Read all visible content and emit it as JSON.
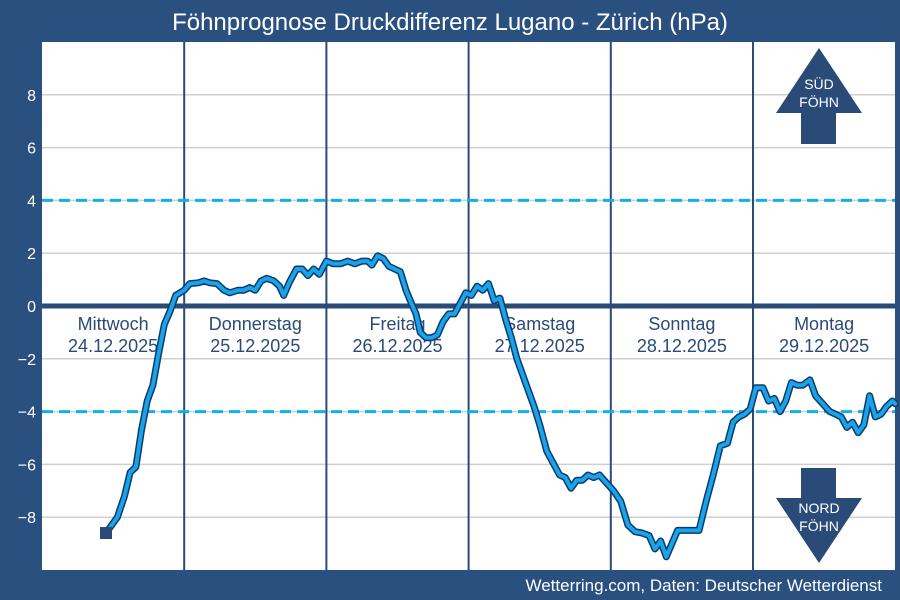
{
  "chart_data": {
    "type": "line",
    "title": "Föhnprognose Druckdifferenz Lugano - Zürich (hPa)",
    "credit": "Wetterring.com, Daten: Deutscher Wetterdienst",
    "ylim": [
      -10,
      10
    ],
    "xlim": [
      0,
      6
    ],
    "yticks": [
      {
        "value": 8,
        "label": "8"
      },
      {
        "value": 6,
        "label": "6"
      },
      {
        "value": 4,
        "label": "4"
      },
      {
        "value": 2,
        "label": "2"
      },
      {
        "value": 0,
        "label": "0"
      },
      {
        "value": -2,
        "label": "−2"
      },
      {
        "value": -4,
        "label": "−4"
      },
      {
        "value": -6,
        "label": "−6"
      },
      {
        "value": -8,
        "label": "−8"
      }
    ],
    "grid": true,
    "thresholds": [
      4,
      -4
    ],
    "days": [
      {
        "name": "Mittwoch",
        "date": "24.12.2025"
      },
      {
        "name": "Donnerstag",
        "date": "25.12.2025"
      },
      {
        "name": "Freitag",
        "date": "26.12.2025"
      },
      {
        "name": "Samstag",
        "date": "27.12.2025"
      },
      {
        "name": "Sonntag",
        "date": "28.12.2025"
      },
      {
        "name": "Montag",
        "date": "29.12.2025"
      }
    ],
    "markers": {
      "up": "SÜD FÖHN",
      "down": "NORD FÖHN"
    },
    "start_marker": {
      "x": 0.45,
      "y": -8.6
    },
    "series": [
      {
        "color": "#1aa3e8",
        "points": [
          [
            0.45,
            -8.6
          ],
          [
            0.53,
            -8.0
          ],
          [
            0.58,
            -7.2
          ],
          [
            0.62,
            -6.3
          ],
          [
            0.66,
            -6.1
          ],
          [
            0.7,
            -4.7
          ],
          [
            0.74,
            -3.6
          ],
          [
            0.78,
            -3.0
          ],
          [
            0.82,
            -1.8
          ],
          [
            0.86,
            -0.7
          ],
          [
            0.9,
            -0.2
          ],
          [
            0.94,
            0.4
          ],
          [
            1.0,
            0.6
          ],
          [
            1.04,
            0.85
          ],
          [
            1.1,
            0.88
          ],
          [
            1.14,
            0.95
          ],
          [
            1.18,
            0.88
          ],
          [
            1.23,
            0.85
          ],
          [
            1.28,
            0.6
          ],
          [
            1.32,
            0.5
          ],
          [
            1.38,
            0.6
          ],
          [
            1.42,
            0.6
          ],
          [
            1.46,
            0.7
          ],
          [
            1.5,
            0.6
          ],
          [
            1.54,
            0.95
          ],
          [
            1.58,
            1.05
          ],
          [
            1.63,
            0.95
          ],
          [
            1.67,
            0.75
          ],
          [
            1.7,
            0.4
          ],
          [
            1.74,
            0.9
          ],
          [
            1.79,
            1.4
          ],
          [
            1.83,
            1.4
          ],
          [
            1.87,
            1.15
          ],
          [
            1.91,
            1.4
          ],
          [
            1.95,
            1.2
          ],
          [
            2.0,
            1.7
          ],
          [
            2.05,
            1.6
          ],
          [
            2.1,
            1.6
          ],
          [
            2.15,
            1.7
          ],
          [
            2.2,
            1.6
          ],
          [
            2.25,
            1.7
          ],
          [
            2.29,
            1.7
          ],
          [
            2.32,
            1.55
          ],
          [
            2.36,
            1.9
          ],
          [
            2.4,
            1.8
          ],
          [
            2.44,
            1.5
          ],
          [
            2.48,
            1.4
          ],
          [
            2.52,
            1.3
          ],
          [
            2.56,
            0.6
          ],
          [
            2.59,
            0.2
          ],
          [
            2.63,
            -0.3
          ],
          [
            2.66,
            -1.0
          ],
          [
            2.7,
            -1.2
          ],
          [
            2.74,
            -1.2
          ],
          [
            2.78,
            -1.1
          ],
          [
            2.82,
            -0.6
          ],
          [
            2.86,
            -0.3
          ],
          [
            2.9,
            -0.3
          ],
          [
            2.94,
            0.1
          ],
          [
            2.98,
            0.5
          ],
          [
            3.02,
            0.4
          ],
          [
            3.06,
            0.75
          ],
          [
            3.1,
            0.6
          ],
          [
            3.14,
            0.85
          ],
          [
            3.18,
            0.2
          ],
          [
            3.22,
            0.3
          ],
          [
            3.26,
            -0.5
          ],
          [
            3.3,
            -1.2
          ],
          [
            3.34,
            -2.0
          ],
          [
            3.38,
            -2.6
          ],
          [
            3.42,
            -3.2
          ],
          [
            3.46,
            -3.8
          ],
          [
            3.5,
            -4.5
          ],
          [
            3.55,
            -5.5
          ],
          [
            3.6,
            -6.0
          ],
          [
            3.64,
            -6.4
          ],
          [
            3.68,
            -6.5
          ],
          [
            3.72,
            -6.9
          ],
          [
            3.76,
            -6.6
          ],
          [
            3.8,
            -6.6
          ],
          [
            3.84,
            -6.4
          ],
          [
            3.88,
            -6.5
          ],
          [
            3.92,
            -6.4
          ],
          [
            3.97,
            -6.7
          ],
          [
            4.02,
            -7.0
          ],
          [
            4.07,
            -7.4
          ],
          [
            4.12,
            -8.3
          ],
          [
            4.17,
            -8.55
          ],
          [
            4.22,
            -8.6
          ],
          [
            4.27,
            -8.7
          ],
          [
            4.31,
            -9.2
          ],
          [
            4.35,
            -8.9
          ],
          [
            4.39,
            -9.5
          ],
          [
            4.43,
            -9.0
          ],
          [
            4.47,
            -8.5
          ],
          [
            4.52,
            -8.5
          ],
          [
            4.57,
            -8.5
          ],
          [
            4.62,
            -8.5
          ],
          [
            4.67,
            -7.4
          ],
          [
            4.72,
            -6.4
          ],
          [
            4.77,
            -5.3
          ],
          [
            4.82,
            -5.2
          ],
          [
            4.86,
            -4.4
          ],
          [
            4.9,
            -4.2
          ],
          [
            4.94,
            -4.1
          ],
          [
            4.98,
            -3.9
          ],
          [
            5.02,
            -3.1
          ],
          [
            5.07,
            -3.1
          ],
          [
            5.11,
            -3.6
          ],
          [
            5.15,
            -3.5
          ],
          [
            5.19,
            -4.0
          ],
          [
            5.23,
            -3.6
          ],
          [
            5.27,
            -2.9
          ],
          [
            5.31,
            -3.0
          ],
          [
            5.35,
            -3.0
          ],
          [
            5.4,
            -2.8
          ],
          [
            5.44,
            -3.4
          ],
          [
            5.49,
            -3.7
          ],
          [
            5.54,
            -4.0
          ],
          [
            5.58,
            -4.1
          ],
          [
            5.62,
            -4.2
          ],
          [
            5.66,
            -4.6
          ],
          [
            5.7,
            -4.4
          ],
          [
            5.74,
            -4.8
          ],
          [
            5.78,
            -4.5
          ],
          [
            5.82,
            -3.4
          ],
          [
            5.86,
            -4.2
          ],
          [
            5.9,
            -4.1
          ],
          [
            5.94,
            -3.8
          ],
          [
            5.98,
            -3.6
          ],
          [
            6.0,
            -3.7
          ]
        ]
      }
    ]
  }
}
